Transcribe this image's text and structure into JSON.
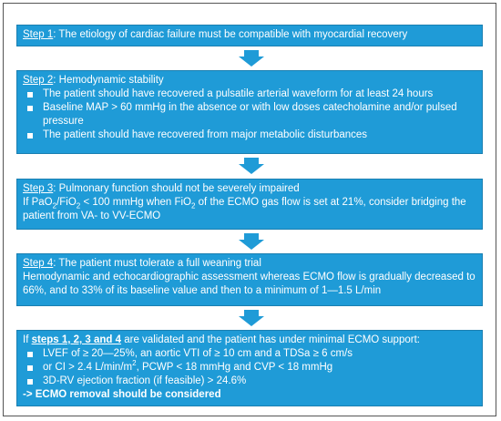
{
  "step1": {
    "label": "Step 1",
    "text": ": The etiology of cardiac failure must be compatible with myocardial recovery"
  },
  "step2": {
    "label": "Step 2",
    "text": ": Hemodynamic stability",
    "bullets": [
      "The patient should have recovered a pulsatile arterial waveform for at least 24 hours",
      "Baseline MAP > 60 mmHg in the absence or with low doses catecholamine and/or pulsed pressure",
      "The patient should have recovered from major metabolic disturbances"
    ]
  },
  "step3": {
    "label": "Step 3",
    "text": ": Pulmonary function should not be severely impaired",
    "line_a": "If PaO",
    "sub_2a": "2",
    "line_b": "/FiO",
    "sub_2b": "2",
    "line_c": " < 100 mmHg when FiO",
    "sub_2c": "2",
    "line_d": " of the ECMO gas flow is set at 21%, consider bridging the patient from VA- to VV-ECMO"
  },
  "step4": {
    "label": "Step 4",
    "text": ": The patient must tolerate a full weaning trial",
    "body": "Hemodynamic and echocardiographic assessment whereas ECMO flow is gradually decreased to 66%, and to 33% of its baseline value and then to a minimum of 1—1.5 L/min"
  },
  "step5": {
    "pre": "If ",
    "steps": "steps 1, 2, 3 and 4",
    "post": " are validated and the patient has under minimal ECMO support:",
    "bullet1": "LVEF of ≥ 20—25%, an aortic VTI of ≥ 10 cm and a TDSa ≥ 6 cm/s",
    "bullet2a": "or CI > 2.4 L/min/m",
    "bullet2sup": "2",
    "bullet2b": ", PCWP < 18 mmHg and CVP < 18 mmHg",
    "bullet3": "3D-RV ejection fraction (if feasible) > 24.6%",
    "conclusion": "-> ECMO removal should be considered"
  },
  "colors": {
    "box": "#1f9bd7",
    "arrow": "#1f9bd7"
  },
  "icons": {
    "arrow": "down-arrow-icon"
  }
}
